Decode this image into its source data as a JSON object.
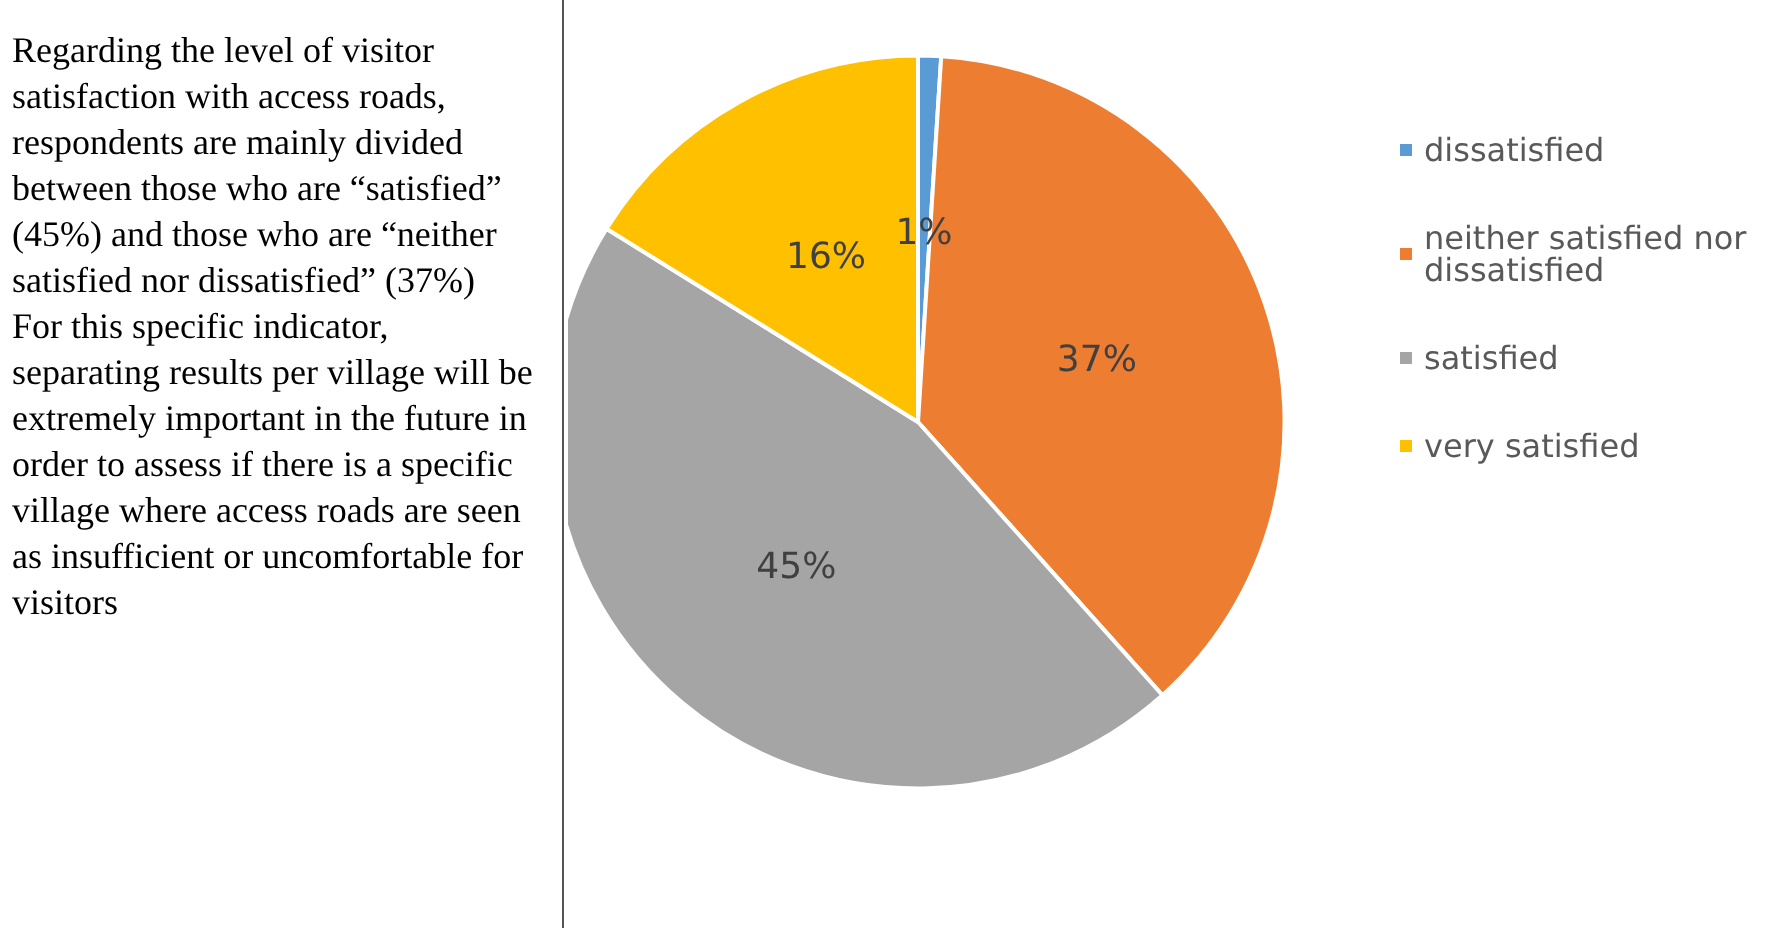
{
  "chart_data": {
    "type": "pie",
    "categories": [
      "dissatisfied",
      "neither satisfied nor dissatisfied",
      "satisfied",
      "very satisfied"
    ],
    "values": [
      1,
      37,
      45,
      16
    ],
    "colors": [
      "#5b9bd5",
      "#ed7d31",
      "#a5a5a5",
      "#ffc000"
    ],
    "value_labels": [
      "1%",
      "37%",
      "45%",
      "16%"
    ],
    "legend": "right",
    "annotations": [
      "Regarding the level of visitor satisfaction with access roads, respondents are mainly divided between those who are “satisfied” (45%) and those who are “neither satisfied nor dissatisfied” (37%)",
      "For this specific indicator, separating results per village will be extremely important in the future in order to assess if there is a specific village where access roads are seen as insufficient or uncomfortable for visitors"
    ]
  }
}
